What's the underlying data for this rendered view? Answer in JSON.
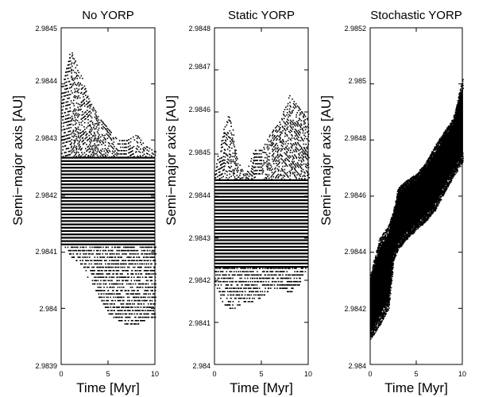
{
  "chart_data": [
    {
      "type": "scatter",
      "title": "No YORP",
      "xlabel": "Time [Myr]",
      "ylabel": "Semi−major axis [AU]",
      "xlim": [
        0,
        10
      ],
      "ylim": [
        2.9839,
        2.9845
      ],
      "xticks": [
        0,
        5,
        10
      ],
      "yticks": [
        2.9839,
        2.984,
        2.9841,
        2.9842,
        2.9843,
        2.9844,
        2.9845
      ],
      "ytick_labels": [
        "2.9839",
        "2.984",
        "2.9841",
        "2.9842",
        "2.9843",
        "2.9844",
        "2.9845"
      ],
      "series": [
        {
          "marker_color": "#000000",
          "upper_envelope": [
            [
              0.0,
              2.98439
            ],
            [
              1.0,
              2.98446
            ],
            [
              2.0,
              2.98442
            ],
            [
              3.0,
              2.98437
            ],
            [
              4.0,
              2.98434
            ],
            [
              5.0,
              2.98432
            ],
            [
              6.0,
              2.9843
            ],
            [
              7.0,
              2.9843
            ],
            [
              8.0,
              2.98431
            ],
            [
              9.0,
              2.98429
            ],
            [
              10.0,
              2.98428
            ]
          ],
          "lower_envelope": [
            [
              0.0,
              2.98412
            ],
            [
              1.0,
              2.98409
            ],
            [
              2.0,
              2.98408
            ],
            [
              3.0,
              2.98405
            ],
            [
              4.0,
              2.98402
            ],
            [
              5.0,
              2.98399
            ],
            [
              6.0,
              2.98398
            ],
            [
              7.0,
              2.98397
            ],
            [
              8.0,
              2.98397
            ],
            [
              9.0,
              2.98398
            ],
            [
              10.0,
              2.98398
            ]
          ],
          "dense_band": [
            2.98411,
            2.98427
          ]
        }
      ]
    },
    {
      "type": "scatter",
      "title": "Static YORP",
      "xlabel": "Time [Myr]",
      "ylabel": "Semi−major axis [AU]",
      "xlim": [
        0,
        10
      ],
      "ylim": [
        2.984,
        2.9848
      ],
      "xticks": [
        0,
        5,
        10
      ],
      "yticks": [
        2.984,
        2.9841,
        2.9842,
        2.9843,
        2.9844,
        2.9845,
        2.9846,
        2.9847,
        2.9848
      ],
      "ytick_labels": [
        "2.984",
        "2.9841",
        "2.9842",
        "2.9843",
        "2.9844",
        "2.9845",
        "2.9846",
        "2.9847",
        "2.9848"
      ],
      "series": [
        {
          "marker_color": "#000000",
          "upper_envelope": [
            [
              0.0,
              2.98446
            ],
            [
              1.0,
              2.98456
            ],
            [
              1.6,
              2.9846
            ],
            [
              2.5,
              2.98448
            ],
            [
              3.3,
              2.98445
            ],
            [
              4.2,
              2.98451
            ],
            [
              5.0,
              2.98451
            ],
            [
              6.0,
              2.98455
            ],
            [
              7.0,
              2.98458
            ],
            [
              8.0,
              2.98464
            ],
            [
              9.0,
              2.98461
            ],
            [
              10.0,
              2.98458
            ]
          ],
          "lower_envelope": [
            [
              0.0,
              2.98419
            ],
            [
              1.0,
              2.98414
            ],
            [
              2.0,
              2.98413
            ],
            [
              3.0,
              2.98415
            ],
            [
              4.0,
              2.98415
            ],
            [
              5.0,
              2.98416
            ],
            [
              6.0,
              2.98418
            ],
            [
              7.0,
              2.98418
            ],
            [
              8.0,
              2.98417
            ],
            [
              9.0,
              2.98419
            ],
            [
              10.0,
              2.98424
            ]
          ],
          "dense_band": [
            2.98423,
            2.98444
          ]
        }
      ]
    },
    {
      "type": "scatter",
      "title": "Stochastic YORP",
      "xlabel": "Time [Myr]",
      "ylabel": "Semi−major axis [AU]",
      "xlim": [
        0,
        10
      ],
      "ylim": [
        2.984,
        2.9852
      ],
      "xticks": [
        0,
        5,
        10
      ],
      "yticks": [
        2.984,
        2.9842,
        2.9844,
        2.9846,
        2.9848,
        2.985,
        2.9852
      ],
      "ytick_labels": [
        "2.984",
        "2.9842",
        "2.9844",
        "2.9846",
        "2.9848",
        "2.985",
        "2.9852"
      ],
      "series": [
        {
          "marker_color": "#000000",
          "upper_envelope": [
            [
              0.0,
              2.98432
            ],
            [
              1.0,
              2.98445
            ],
            [
              2.0,
              2.9845
            ],
            [
              2.5,
              2.98455
            ],
            [
              3.0,
              2.98463
            ],
            [
              4.0,
              2.98466
            ],
            [
              5.0,
              2.98468
            ],
            [
              6.0,
              2.98472
            ],
            [
              7.0,
              2.98478
            ],
            [
              8.0,
              2.98483
            ],
            [
              9.0,
              2.98488
            ],
            [
              10.0,
              2.98502
            ]
          ],
          "lower_envelope": [
            [
              0.0,
              2.98409
            ],
            [
              1.0,
              2.98414
            ],
            [
              2.0,
              2.9842
            ],
            [
              2.5,
              2.98437
            ],
            [
              3.0,
              2.98441
            ],
            [
              4.0,
              2.98445
            ],
            [
              5.0,
              2.98448
            ],
            [
              6.0,
              2.98451
            ],
            [
              7.0,
              2.98455
            ],
            [
              8.0,
              2.98461
            ],
            [
              9.0,
              2.98467
            ],
            [
              10.0,
              2.98472
            ]
          ]
        }
      ]
    }
  ]
}
